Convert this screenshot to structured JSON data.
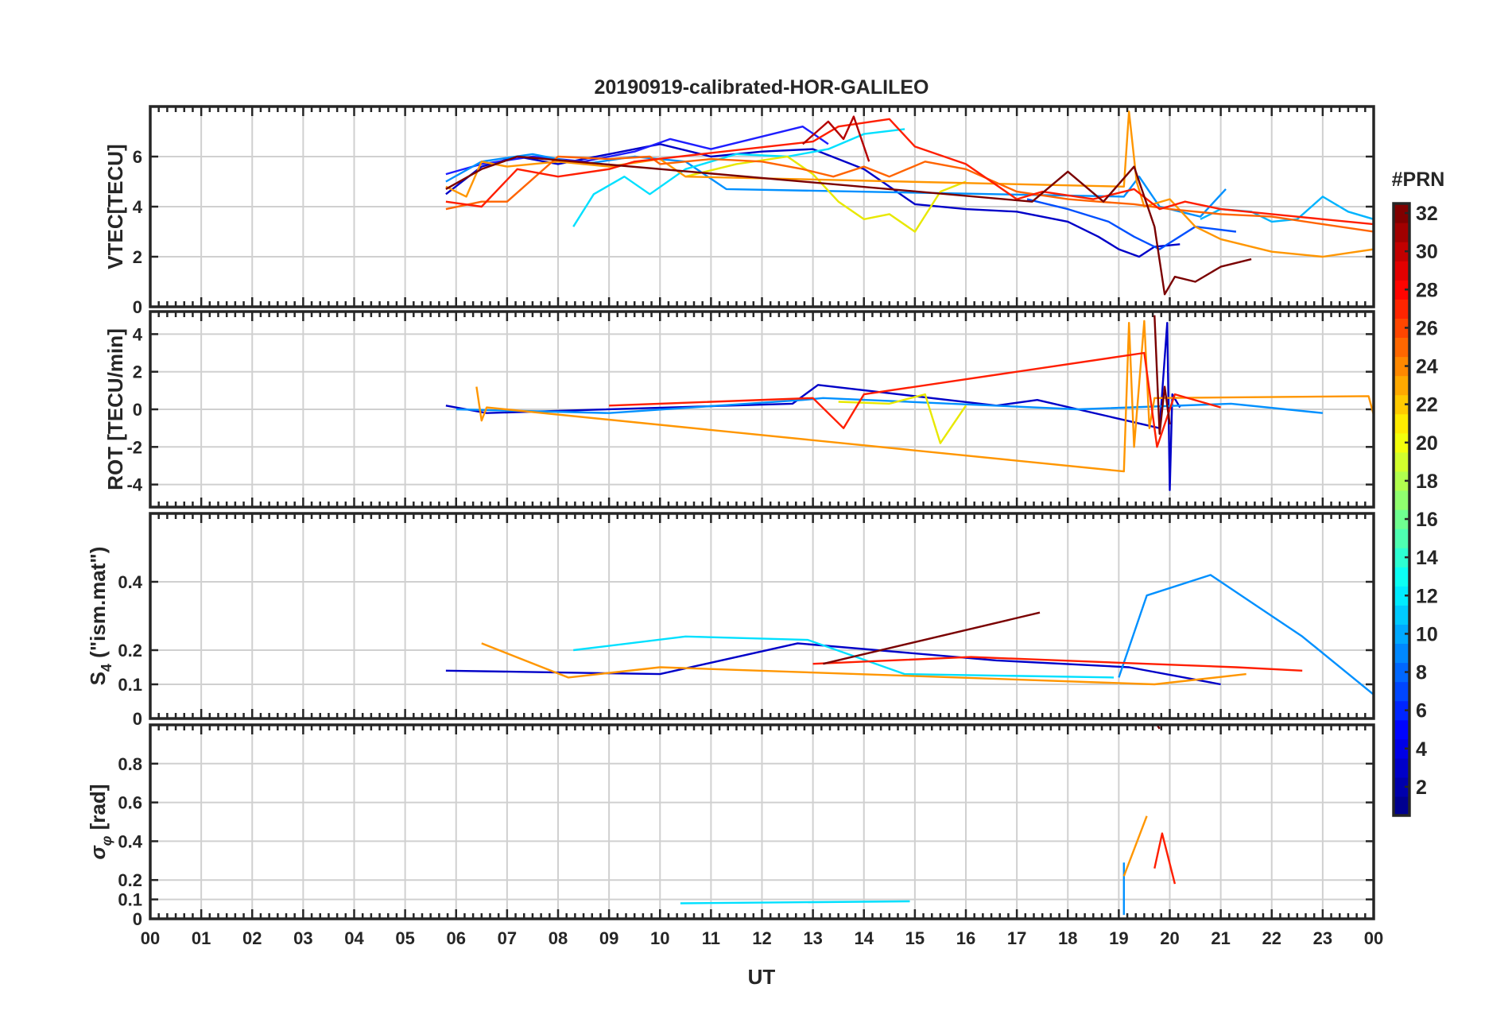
{
  "chart_data": {
    "type": "line",
    "title": "20190919-calibrated-HOR-GALILEO",
    "xlabel": "UT",
    "x_ticks": [
      "00",
      "01",
      "02",
      "03",
      "04",
      "05",
      "06",
      "07",
      "08",
      "09",
      "10",
      "11",
      "12",
      "13",
      "14",
      "15",
      "16",
      "17",
      "18",
      "19",
      "20",
      "21",
      "22",
      "23",
      "00"
    ],
    "xlim": [
      0,
      24
    ],
    "grid": true,
    "colorbar": {
      "label": "#PRN",
      "range": [
        1,
        32
      ],
      "ticks": [
        "2",
        "4",
        "6",
        "8",
        "10",
        "12",
        "14",
        "16",
        "18",
        "20",
        "22",
        "24",
        "26",
        "28",
        "30",
        "32"
      ],
      "colormap": "jet",
      "colors": [
        "#00008f",
        "#0000ff",
        "#0080ff",
        "#00ffff",
        "#80ff80",
        "#ffff00",
        "#ff8000",
        "#ff0000",
        "#800000"
      ]
    },
    "panels": [
      {
        "id": "vtec",
        "ylabel": "VTEC[TECU]",
        "ylim": [
          0,
          8
        ],
        "yticks": [
          "0",
          "2",
          "4",
          "6"
        ],
        "series": [
          {
            "prn": 2,
            "color": "#0000c8",
            "x": [
              5.8,
              6.5,
              7.2,
              8,
              9,
              10,
              11,
              12,
              13,
              14,
              14.5,
              15,
              16,
              17,
              18,
              18.6,
              19,
              19.4,
              19.7,
              20.2
            ],
            "y": [
              4.5,
              5.6,
              6.0,
              5.7,
              6.1,
              6.5,
              6.0,
              6.2,
              6.3,
              5.5,
              4.8,
              4.1,
              3.9,
              3.8,
              3.4,
              2.8,
              2.3,
              2.0,
              2.4,
              2.5
            ]
          },
          {
            "prn": 4,
            "color": "#1e1eff",
            "x": [
              5.8,
              6.5,
              7.5,
              8.5,
              9.5,
              10.2,
              11,
              12,
              12.8,
              13.3
            ],
            "y": [
              5.3,
              5.7,
              6.0,
              5.8,
              6.2,
              6.7,
              6.3,
              6.8,
              7.2,
              6.5
            ]
          },
          {
            "prn": 6,
            "color": "#0050ff",
            "x": [
              17.2,
              18,
              18.8,
              19.3,
              19.8,
              20.5,
              21.3
            ],
            "y": [
              4.3,
              3.9,
              3.4,
              2.8,
              2.3,
              3.2,
              3.0
            ]
          },
          {
            "prn": 9,
            "color": "#0090ff",
            "x": [
              5.8,
              6.5,
              7.5,
              8.5,
              9.5,
              10.5,
              11.3,
              19.1,
              19.4,
              19.8,
              20.6,
              21.1
            ],
            "y": [
              5.0,
              5.8,
              6.1,
              5.7,
              6.0,
              5.8,
              4.7,
              4.4,
              5.2,
              4.0,
              3.6,
              4.7
            ]
          },
          {
            "prn": 11,
            "color": "#00b4ff",
            "x": [
              20.6,
              21,
              21.6,
              22,
              22.5,
              23,
              23.5,
              24
            ],
            "y": [
              3.5,
              3.9,
              3.8,
              3.4,
              3.5,
              4.4,
              3.8,
              3.5
            ]
          },
          {
            "prn": 13,
            "color": "#00e0ff",
            "x": [
              8.3,
              8.7,
              9.3,
              9.8,
              10.5,
              11.5,
              12.5,
              13.3,
              14,
              14.8
            ],
            "y": [
              3.2,
              4.5,
              5.2,
              4.5,
              5.5,
              6.1,
              6.0,
              6.3,
              6.9,
              7.1
            ]
          },
          {
            "prn": 19,
            "color": "#e8e800",
            "x": [
              10.5,
              11.5,
              12.5,
              13,
              13.5,
              14,
              14.5,
              15,
              15.5,
              16
            ],
            "y": [
              5.2,
              5.7,
              6.0,
              5.3,
              4.2,
              3.5,
              3.7,
              3.0,
              4.6,
              5.0
            ]
          },
          {
            "prn": 22,
            "color": "#ff9600",
            "x": [
              5.8,
              6.2,
              6.5,
              7,
              8,
              9,
              10,
              10.5,
              19.1,
              19.2,
              19.35,
              19.5,
              20,
              20.5,
              21,
              22,
              23,
              24
            ],
            "y": [
              4.8,
              4.4,
              5.8,
              5.6,
              5.8,
              5.6,
              5.9,
              5.2,
              4.8,
              7.8,
              5.0,
              4.0,
              4.3,
              3.2,
              2.7,
              2.2,
              2.0,
              2.3
            ]
          },
          {
            "prn": 25,
            "color": "#ff6400",
            "x": [
              5.8,
              6.5,
              7,
              8,
              9,
              9.8,
              10,
              11,
              12,
              12.8,
              13.4,
              14,
              14.5,
              15.2,
              16,
              17,
              18,
              18.6,
              19.3,
              20,
              21,
              22,
              23,
              24
            ],
            "y": [
              3.9,
              4.2,
              4.2,
              6.0,
              5.9,
              6.0,
              5.7,
              5.9,
              5.8,
              5.5,
              5.2,
              5.6,
              5.2,
              5.8,
              5.5,
              4.6,
              4.3,
              4.2,
              4.1,
              3.9,
              3.7,
              3.6,
              3.3,
              3.0
            ]
          },
          {
            "prn": 28,
            "color": "#ff1e00",
            "x": [
              5.8,
              6.5,
              7.2,
              8,
              9,
              9.5,
              13,
              13.5,
              14.5,
              15,
              16,
              17,
              17.5,
              18.5,
              19.3,
              19.8,
              20.3,
              21,
              22,
              23,
              24
            ],
            "y": [
              4.2,
              4.0,
              5.5,
              5.2,
              5.5,
              5.8,
              6.6,
              7.2,
              7.5,
              6.4,
              5.7,
              4.3,
              4.6,
              4.3,
              4.7,
              3.9,
              4.2,
              3.9,
              3.7,
              3.5,
              3.3
            ]
          },
          {
            "prn": 30,
            "color": "#b40000",
            "x": [
              12.8,
              13.3,
              13.6,
              13.8,
              14.1
            ],
            "y": [
              6.5,
              7.4,
              6.7,
              7.6,
              5.8
            ]
          },
          {
            "prn": 32,
            "color": "#7a0000",
            "x": [
              5.8,
              6.5,
              7.2,
              17.3,
              18,
              18.7,
              19.3,
              19.7,
              19.9,
              20.1,
              20.5,
              21,
              21.6
            ],
            "y": [
              4.7,
              5.5,
              6.0,
              4.2,
              5.4,
              4.2,
              5.6,
              3.2,
              0.5,
              1.2,
              1.0,
              1.6,
              1.9
            ]
          }
        ]
      },
      {
        "id": "rot",
        "ylabel": "ROT [TECU/min]",
        "ylim": [
          -5.2,
          5.2
        ],
        "yticks": [
          "-4",
          "-2",
          "0",
          "2",
          "4"
        ],
        "series": [
          {
            "prn": 2,
            "color": "#0000c8",
            "x": [
              5.8,
              6.6,
              12.6,
              13.1,
              16.6,
              17.4,
              19.8,
              19.95,
              20.0,
              20.05,
              20.2
            ],
            "y": [
              0.2,
              -0.2,
              0.3,
              1.3,
              0.2,
              0.5,
              -1.0,
              4.6,
              -4.3,
              0.8,
              0.1
            ]
          },
          {
            "prn": 9,
            "color": "#0090ff",
            "x": [
              6.0,
              9.0,
              12.8,
              13.2,
              18.2,
              21.2,
              23.0
            ],
            "y": [
              0.0,
              -0.2,
              0.5,
              0.6,
              0.0,
              0.3,
              -0.2
            ]
          },
          {
            "prn": 19,
            "color": "#e8e800",
            "x": [
              13.5,
              14.5,
              15.2,
              15.5,
              16.0
            ],
            "y": [
              0.4,
              0.3,
              0.8,
              -1.8,
              0.2
            ]
          },
          {
            "prn": 22,
            "color": "#ff9600",
            "x": [
              6.4,
              6.5,
              6.6,
              19.1,
              19.2,
              19.3,
              19.5,
              19.6,
              19.7,
              23.9,
              24.0
            ],
            "y": [
              1.2,
              -0.6,
              0.1,
              -3.3,
              4.6,
              -2.0,
              4.7,
              -1.0,
              0.6,
              0.7,
              -0.3
            ]
          },
          {
            "prn": 28,
            "color": "#ff1e00",
            "x": [
              9.0,
              13.0,
              13.6,
              14.0,
              19.5,
              19.75,
              20.1,
              21.0
            ],
            "y": [
              0.2,
              0.6,
              -1.0,
              0.8,
              3.0,
              -2.0,
              0.8,
              0.1
            ]
          },
          {
            "prn": 32,
            "color": "#7a0000",
            "x": [
              19.7,
              19.8,
              19.9,
              20.0
            ],
            "y": [
              5.0,
              -1.3,
              1.2,
              -0.8
            ]
          }
        ]
      },
      {
        "id": "s4",
        "ylabel": "S_4 (\"ism.mat\")",
        "ylim": [
          0,
          0.6
        ],
        "yticks": [
          "0",
          "0.1",
          "0.2",
          "0.4"
        ],
        "series": [
          {
            "prn": 2,
            "color": "#0000c8",
            "x": [
              5.8,
              10.0,
              12.7,
              16.6,
              19.2,
              21.0
            ],
            "y": [
              0.14,
              0.13,
              0.22,
              0.17,
              0.15,
              0.1
            ]
          },
          {
            "prn": 9,
            "color": "#0090ff",
            "x": [
              19.0,
              19.55,
              20.8,
              22.6,
              24.0
            ],
            "y": [
              0.12,
              0.36,
              0.42,
              0.24,
              0.07
            ]
          },
          {
            "prn": 13,
            "color": "#00e0ff",
            "x": [
              8.3,
              10.5,
              12.9,
              14.8,
              18.9
            ],
            "y": [
              0.2,
              0.24,
              0.23,
              0.13,
              0.12
            ]
          },
          {
            "prn": 22,
            "color": "#ff9600",
            "x": [
              6.5,
              8.2,
              10.0,
              19.7,
              21.5
            ],
            "y": [
              0.22,
              0.12,
              0.15,
              0.1,
              0.13
            ]
          },
          {
            "prn": 28,
            "color": "#ff1e00",
            "x": [
              13.0,
              16.1,
              21.3,
              22.6
            ],
            "y": [
              0.16,
              0.18,
              0.15,
              0.14
            ]
          },
          {
            "prn": 32,
            "color": "#7a0000",
            "x": [
              13.2,
              17.45
            ],
            "y": [
              0.16,
              0.31
            ]
          }
        ]
      },
      {
        "id": "sigma_phi",
        "ylabel": "σ_φ [rad]",
        "ylim": [
          0,
          1.0
        ],
        "yticks": [
          "0",
          "0.1",
          "0.2",
          "0.4",
          "0.6",
          "0.8"
        ],
        "series": [
          {
            "prn": 9,
            "color": "#0090ff",
            "x": [
              19.1
            ],
            "y": [
              0.29
            ]
          },
          {
            "prn": 13,
            "color": "#00e0ff",
            "x": [
              10.4,
              14.9
            ],
            "y": [
              0.08,
              0.09
            ]
          },
          {
            "prn": 22,
            "color": "#ff9600",
            "x": [
              19.1,
              19.55
            ],
            "y": [
              0.22,
              0.53
            ]
          },
          {
            "prn": 28,
            "color": "#ff1e00",
            "x": [
              19.7,
              19.85,
              20.1
            ],
            "y": [
              0.26,
              0.44,
              0.18
            ]
          },
          {
            "prn": 32,
            "color": "#7a0000",
            "x": [
              19.75,
              19.8
            ],
            "y": [
              1.0,
              0.98
            ]
          }
        ]
      }
    ]
  }
}
